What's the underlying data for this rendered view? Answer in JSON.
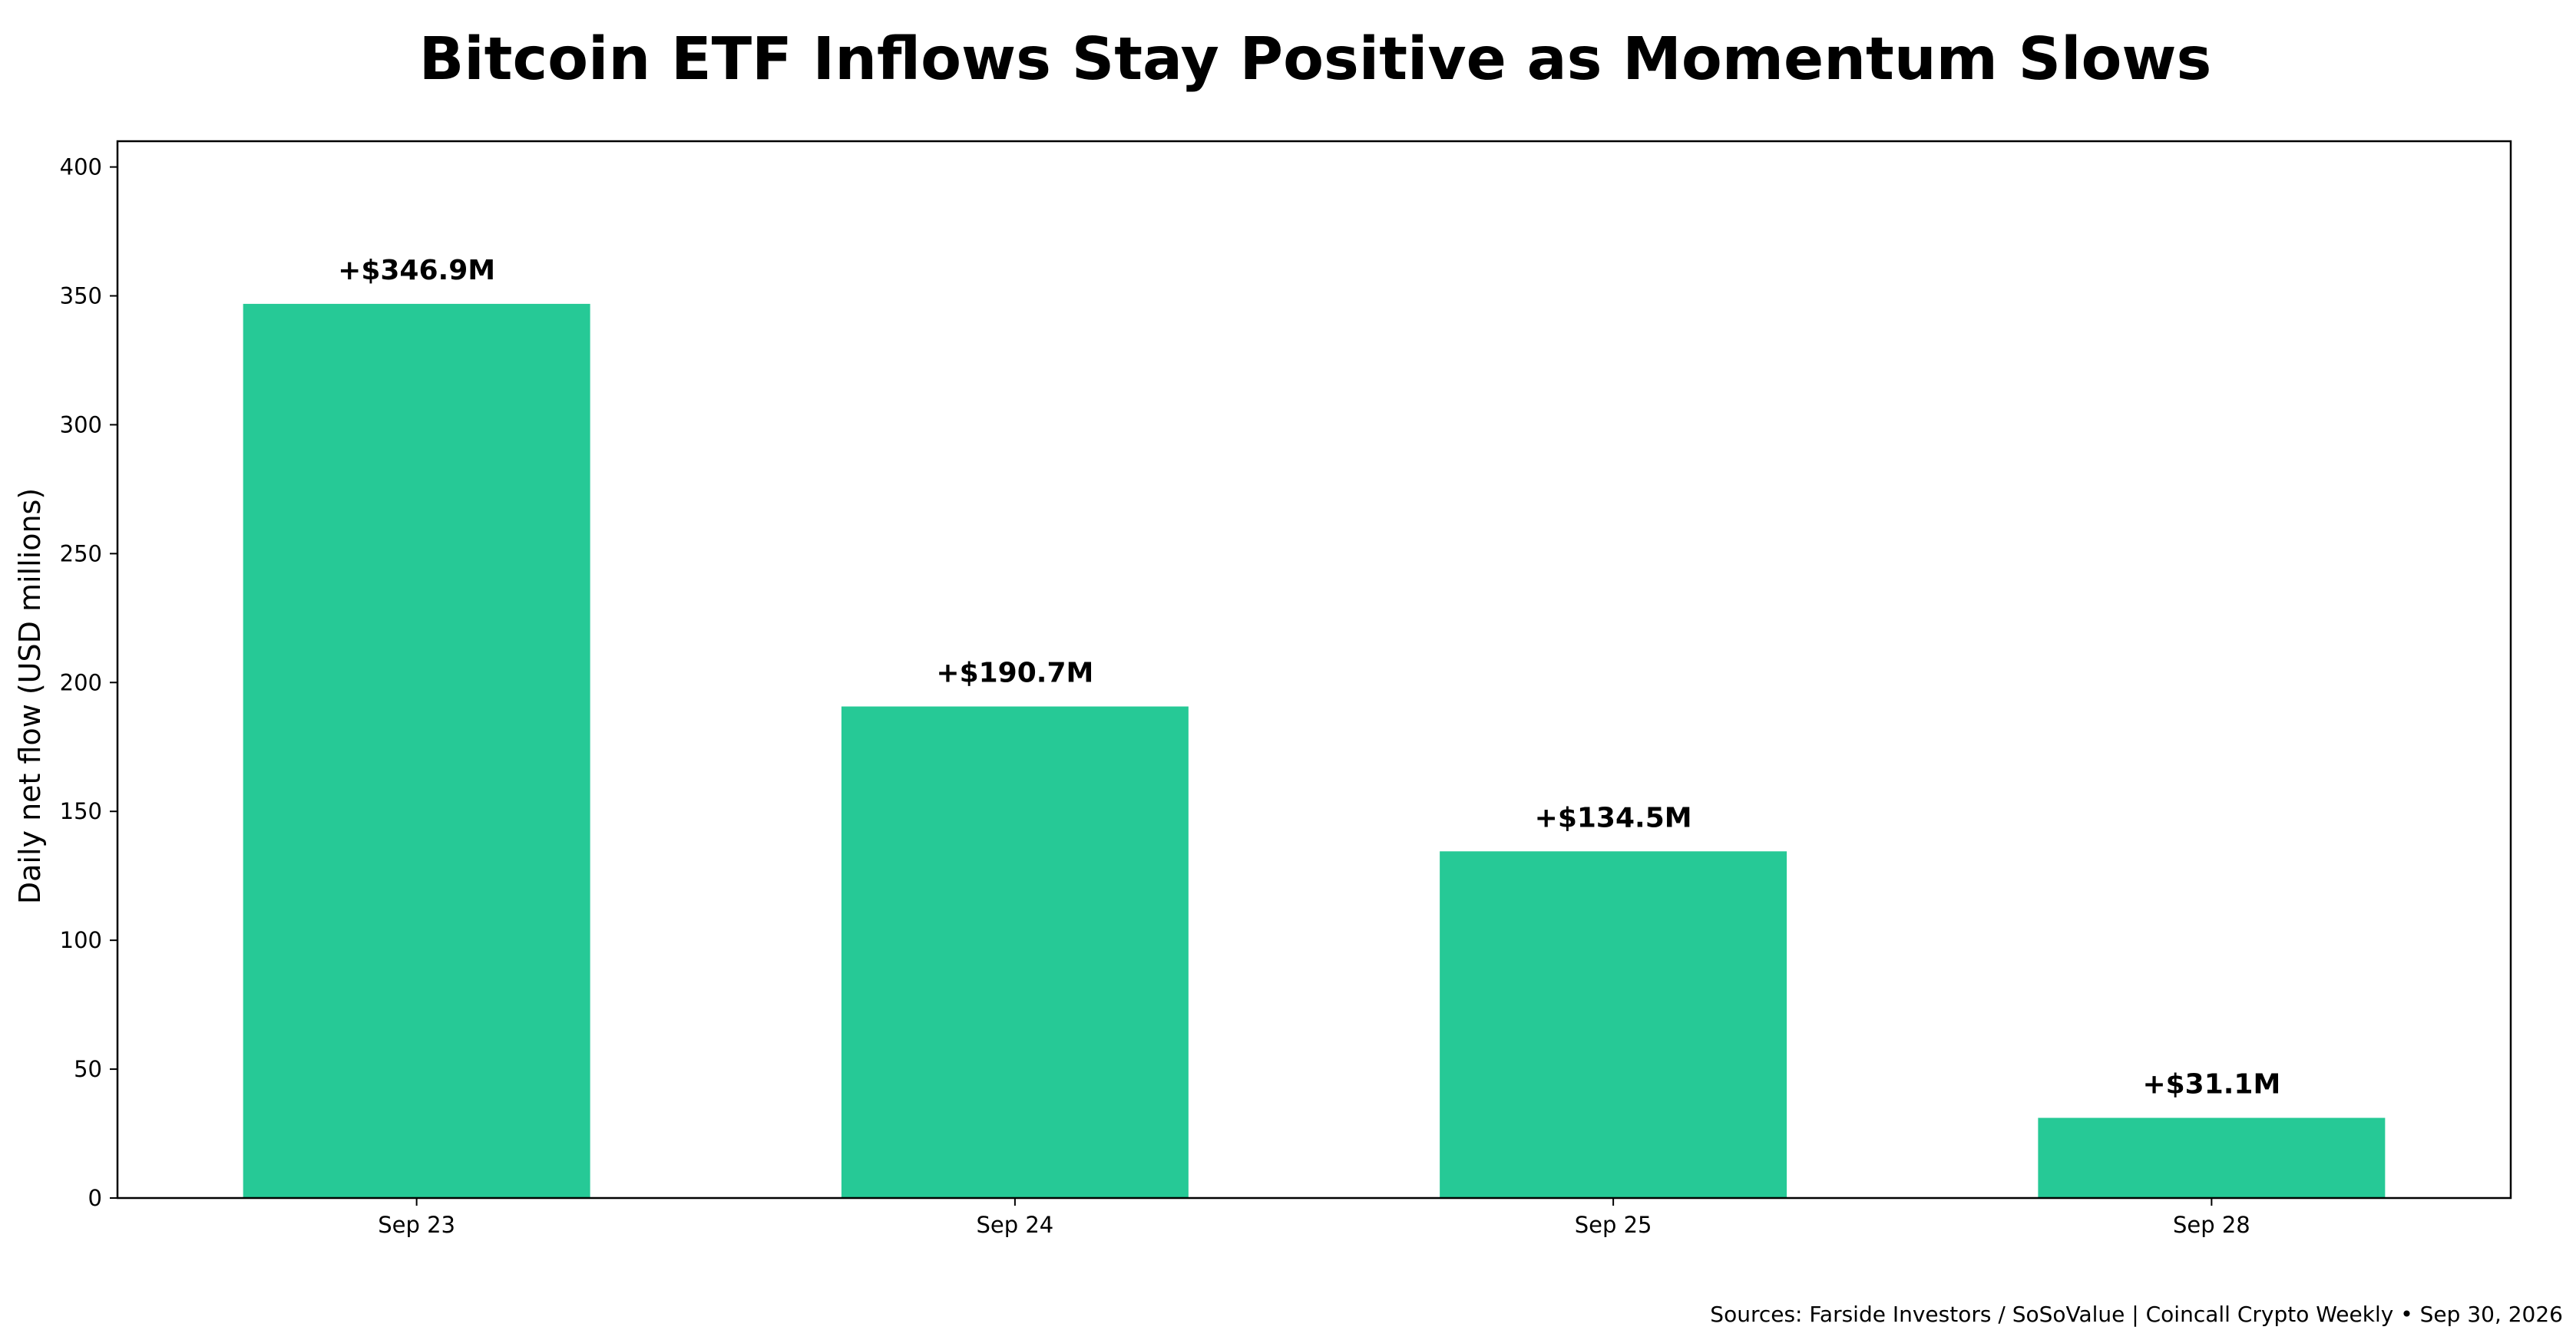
{
  "chart_data": {
    "type": "bar",
    "title": "Bitcoin ETF Inflows Stay Positive as Momentum Slows",
    "xlabel": "",
    "ylabel": "Daily net flow (USD millions)",
    "categories": [
      "Sep 23",
      "Sep 24",
      "Sep 25",
      "Sep 28"
    ],
    "values": [
      346.9,
      190.7,
      134.5,
      31.1
    ],
    "data_labels": [
      "+$346.9M",
      "+$190.7M",
      "+$134.5M",
      "+$31.1M"
    ],
    "ylim": [
      0,
      410
    ],
    "yticks": [
      0,
      50,
      100,
      150,
      200,
      250,
      300,
      350,
      400
    ],
    "ytick_labels": [
      "0",
      "50",
      "100",
      "150",
      "200",
      "250",
      "300",
      "350",
      "400"
    ],
    "grid": false,
    "legend": "none",
    "bar_color": "#26c996",
    "source_note": "Sources: Farside Investors / SoSoValue | Coincall Crypto Weekly • Sep 30, 2026"
  }
}
